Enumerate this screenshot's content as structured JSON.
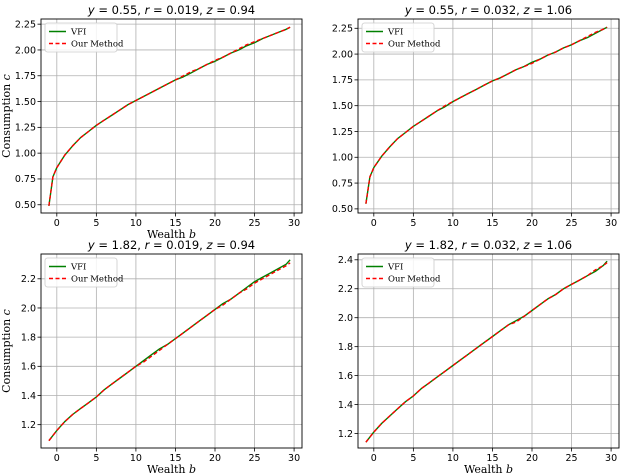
{
  "chart_data": [
    {
      "type": "line",
      "title": "y = 0.55, r = 0.019, z = 0.94",
      "title_parts": [
        "y",
        " = 0.55, ",
        "r",
        " = 0.019, ",
        "z",
        " = 0.94"
      ],
      "xlabel": "Wealth b",
      "xlabel_parts": [
        "Wealth ",
        "b"
      ],
      "ylabel": "Consumption c",
      "ylabel_parts": [
        "Consumption ",
        "c"
      ],
      "xlim": [
        -2,
        31
      ],
      "ylim": [
        0.42,
        2.3
      ],
      "xticks": [
        0,
        5,
        10,
        15,
        20,
        25,
        30
      ],
      "yticks": [
        0.5,
        0.75,
        1.0,
        1.25,
        1.5,
        1.75,
        2.0,
        2.25
      ],
      "ytick_labels": [
        "0.50",
        "0.75",
        "1.00",
        "1.25",
        "1.50",
        "1.75",
        "2.00",
        "2.25"
      ],
      "grid": true,
      "legend_position": "top-left",
      "series": [
        {
          "name": "VFI",
          "color": "#008000",
          "style": "solid",
          "x": [
            -1,
            -0.5,
            0,
            1,
            2,
            3,
            4,
            5,
            6,
            7,
            8,
            9,
            10,
            11,
            12,
            13,
            14,
            15,
            16,
            17,
            18,
            19,
            20,
            21,
            22,
            23,
            24,
            25,
            26,
            27,
            28,
            29,
            29.5
          ],
          "y": [
            0.49,
            0.77,
            0.86,
            0.98,
            1.07,
            1.15,
            1.21,
            1.27,
            1.32,
            1.37,
            1.42,
            1.47,
            1.51,
            1.55,
            1.59,
            1.63,
            1.67,
            1.71,
            1.74,
            1.78,
            1.82,
            1.86,
            1.89,
            1.93,
            1.97,
            2.0,
            2.04,
            2.07,
            2.11,
            2.14,
            2.17,
            2.2,
            2.22
          ]
        },
        {
          "name": "Our Method",
          "color": "#ff0000",
          "style": "dashed",
          "x": [
            -1,
            -0.5,
            0,
            1,
            2,
            3,
            4,
            5,
            6,
            7,
            8,
            9,
            10,
            11,
            12,
            13,
            14,
            15,
            16,
            17,
            18,
            19,
            20,
            21,
            22,
            23,
            24,
            25,
            26,
            27,
            28,
            29,
            29.5
          ],
          "y": [
            0.49,
            0.77,
            0.86,
            0.98,
            1.07,
            1.15,
            1.21,
            1.27,
            1.32,
            1.37,
            1.42,
            1.47,
            1.51,
            1.55,
            1.59,
            1.63,
            1.67,
            1.71,
            1.75,
            1.79,
            1.82,
            1.86,
            1.9,
            1.93,
            1.97,
            2.01,
            2.05,
            2.08,
            2.11,
            2.14,
            2.17,
            2.2,
            2.22
          ]
        }
      ]
    },
    {
      "type": "line",
      "title": "y = 0.55, r = 0.032, z = 1.06",
      "title_parts": [
        "y",
        " = 0.55, ",
        "r",
        " = 0.032, ",
        "z",
        " = 1.06"
      ],
      "xlabel": "",
      "xlabel_parts": [
        "",
        ""
      ],
      "ylabel": "",
      "ylabel_parts": [
        "",
        ""
      ],
      "xlim": [
        -2,
        31
      ],
      "ylim": [
        0.46,
        2.34
      ],
      "xticks": [
        0,
        5,
        10,
        15,
        20,
        25,
        30
      ],
      "yticks": [
        0.5,
        0.75,
        1.0,
        1.25,
        1.5,
        1.75,
        2.0,
        2.25
      ],
      "ytick_labels": [
        "0.50",
        "0.75",
        "1.00",
        "1.25",
        "1.50",
        "1.75",
        "2.00",
        "2.25"
      ],
      "grid": true,
      "legend_position": "top-left",
      "series": [
        {
          "name": "VFI",
          "color": "#008000",
          "style": "solid",
          "x": [
            -1,
            -0.5,
            0,
            1,
            2,
            3,
            4,
            5,
            6,
            7,
            8,
            9,
            10,
            11,
            12,
            13,
            14,
            15,
            16,
            17,
            18,
            19,
            20,
            21,
            22,
            23,
            24,
            25,
            26,
            27,
            28,
            29,
            29.5
          ],
          "y": [
            0.55,
            0.81,
            0.9,
            1.01,
            1.1,
            1.18,
            1.24,
            1.3,
            1.35,
            1.4,
            1.45,
            1.49,
            1.54,
            1.58,
            1.62,
            1.66,
            1.7,
            1.74,
            1.77,
            1.81,
            1.85,
            1.88,
            1.92,
            1.95,
            1.99,
            2.02,
            2.06,
            2.09,
            2.13,
            2.16,
            2.2,
            2.24,
            2.26
          ]
        },
        {
          "name": "Our Method",
          "color": "#ff0000",
          "style": "dashed",
          "x": [
            -1,
            -0.5,
            0,
            1,
            2,
            3,
            4,
            5,
            6,
            7,
            8,
            9,
            10,
            11,
            12,
            13,
            14,
            15,
            16,
            17,
            18,
            19,
            20,
            21,
            22,
            23,
            24,
            25,
            26,
            27,
            28,
            29,
            29.5
          ],
          "y": [
            0.55,
            0.81,
            0.9,
            1.01,
            1.1,
            1.18,
            1.24,
            1.3,
            1.35,
            1.4,
            1.45,
            1.5,
            1.54,
            1.58,
            1.62,
            1.66,
            1.7,
            1.74,
            1.77,
            1.81,
            1.85,
            1.88,
            1.91,
            1.95,
            1.99,
            2.02,
            2.06,
            2.09,
            2.13,
            2.17,
            2.21,
            2.24,
            2.26
          ]
        }
      ]
    },
    {
      "type": "line",
      "title": "y = 1.82, r = 0.019, z = 0.94",
      "title_parts": [
        "y",
        " = 1.82, ",
        "r",
        " = 0.019, ",
        "z",
        " = 0.94"
      ],
      "xlabel": "Wealth b",
      "xlabel_parts": [
        "Wealth ",
        "b"
      ],
      "ylabel": "Consumption c",
      "ylabel_parts": [
        "Consumption ",
        "c"
      ],
      "xlim": [
        -2,
        31
      ],
      "ylim": [
        1.04,
        2.37
      ],
      "xticks": [
        0,
        5,
        10,
        15,
        20,
        25,
        30
      ],
      "yticks": [
        1.2,
        1.4,
        1.6,
        1.8,
        2.0,
        2.2
      ],
      "ytick_labels": [
        "1.2",
        "1.4",
        "1.6",
        "1.8",
        "2.0",
        "2.2"
      ],
      "grid": true,
      "legend_position": "top-left",
      "series": [
        {
          "name": "VFI",
          "color": "#008000",
          "style": "solid",
          "x": [
            -1,
            0,
            1,
            2,
            3,
            4,
            5,
            6,
            7,
            8,
            9,
            10,
            11,
            12,
            13,
            14,
            15,
            16,
            17,
            18,
            19,
            20,
            21,
            22,
            23,
            24,
            25,
            26,
            27,
            28,
            29,
            29.5
          ],
          "y": [
            1.09,
            1.16,
            1.22,
            1.27,
            1.31,
            1.35,
            1.39,
            1.44,
            1.48,
            1.52,
            1.56,
            1.6,
            1.64,
            1.68,
            1.72,
            1.75,
            1.79,
            1.83,
            1.87,
            1.91,
            1.95,
            1.99,
            2.03,
            2.06,
            2.1,
            2.14,
            2.18,
            2.21,
            2.24,
            2.27,
            2.3,
            2.33
          ]
        },
        {
          "name": "Our Method",
          "color": "#ff0000",
          "style": "dashed",
          "x": [
            -1,
            0,
            1,
            2,
            3,
            4,
            5,
            6,
            7,
            8,
            9,
            10,
            11,
            12,
            13,
            14,
            15,
            16,
            17,
            18,
            19,
            20,
            21,
            22,
            23,
            24,
            25,
            26,
            27,
            28,
            29,
            29.5
          ],
          "y": [
            1.09,
            1.16,
            1.22,
            1.27,
            1.31,
            1.35,
            1.39,
            1.44,
            1.48,
            1.52,
            1.56,
            1.6,
            1.63,
            1.67,
            1.71,
            1.75,
            1.79,
            1.83,
            1.87,
            1.91,
            1.95,
            1.99,
            2.02,
            2.06,
            2.1,
            2.13,
            2.17,
            2.2,
            2.23,
            2.26,
            2.29,
            2.31
          ]
        }
      ]
    },
    {
      "type": "line",
      "title": "y = 1.82, r = 0.032, z = 1.06",
      "title_parts": [
        "y",
        " = 1.82, ",
        "r",
        " = 0.032, ",
        "z",
        " = 1.06"
      ],
      "xlabel": "Wealth b",
      "xlabel_parts": [
        "Wealth ",
        "b"
      ],
      "ylabel": "",
      "ylabel_parts": [
        "",
        ""
      ],
      "xlim": [
        -2,
        31
      ],
      "ylim": [
        1.1,
        2.44
      ],
      "xticks": [
        0,
        5,
        10,
        15,
        20,
        25,
        30
      ],
      "yticks": [
        1.2,
        1.4,
        1.6,
        1.8,
        2.0,
        2.2,
        2.4
      ],
      "ytick_labels": [
        "1.2",
        "1.4",
        "1.6",
        "1.8",
        "2.0",
        "2.2",
        "2.4"
      ],
      "grid": true,
      "legend_position": "top-left",
      "series": [
        {
          "name": "VFI",
          "color": "#008000",
          "style": "solid",
          "x": [
            -1,
            0,
            1,
            2,
            3,
            4,
            5,
            6,
            7,
            8,
            9,
            10,
            11,
            12,
            13,
            14,
            15,
            16,
            17,
            18,
            19,
            20,
            21,
            22,
            23,
            24,
            25,
            26,
            27,
            28,
            29,
            29.5
          ],
          "y": [
            1.14,
            1.21,
            1.27,
            1.32,
            1.37,
            1.42,
            1.46,
            1.51,
            1.55,
            1.59,
            1.63,
            1.67,
            1.71,
            1.75,
            1.79,
            1.83,
            1.87,
            1.91,
            1.95,
            1.98,
            2.01,
            2.05,
            2.09,
            2.13,
            2.16,
            2.2,
            2.23,
            2.26,
            2.29,
            2.32,
            2.36,
            2.39
          ]
        },
        {
          "name": "Our Method",
          "color": "#ff0000",
          "style": "dashed",
          "x": [
            -1,
            0,
            1,
            2,
            3,
            4,
            5,
            6,
            7,
            8,
            9,
            10,
            11,
            12,
            13,
            14,
            15,
            16,
            17,
            18,
            19,
            20,
            21,
            22,
            23,
            24,
            25,
            26,
            27,
            28,
            29,
            29.5
          ],
          "y": [
            1.14,
            1.21,
            1.27,
            1.32,
            1.37,
            1.42,
            1.46,
            1.51,
            1.55,
            1.59,
            1.63,
            1.67,
            1.71,
            1.75,
            1.79,
            1.83,
            1.87,
            1.91,
            1.95,
            1.97,
            2.01,
            2.05,
            2.09,
            2.13,
            2.16,
            2.2,
            2.23,
            2.26,
            2.29,
            2.33,
            2.36,
            2.38
          ]
        }
      ]
    }
  ]
}
